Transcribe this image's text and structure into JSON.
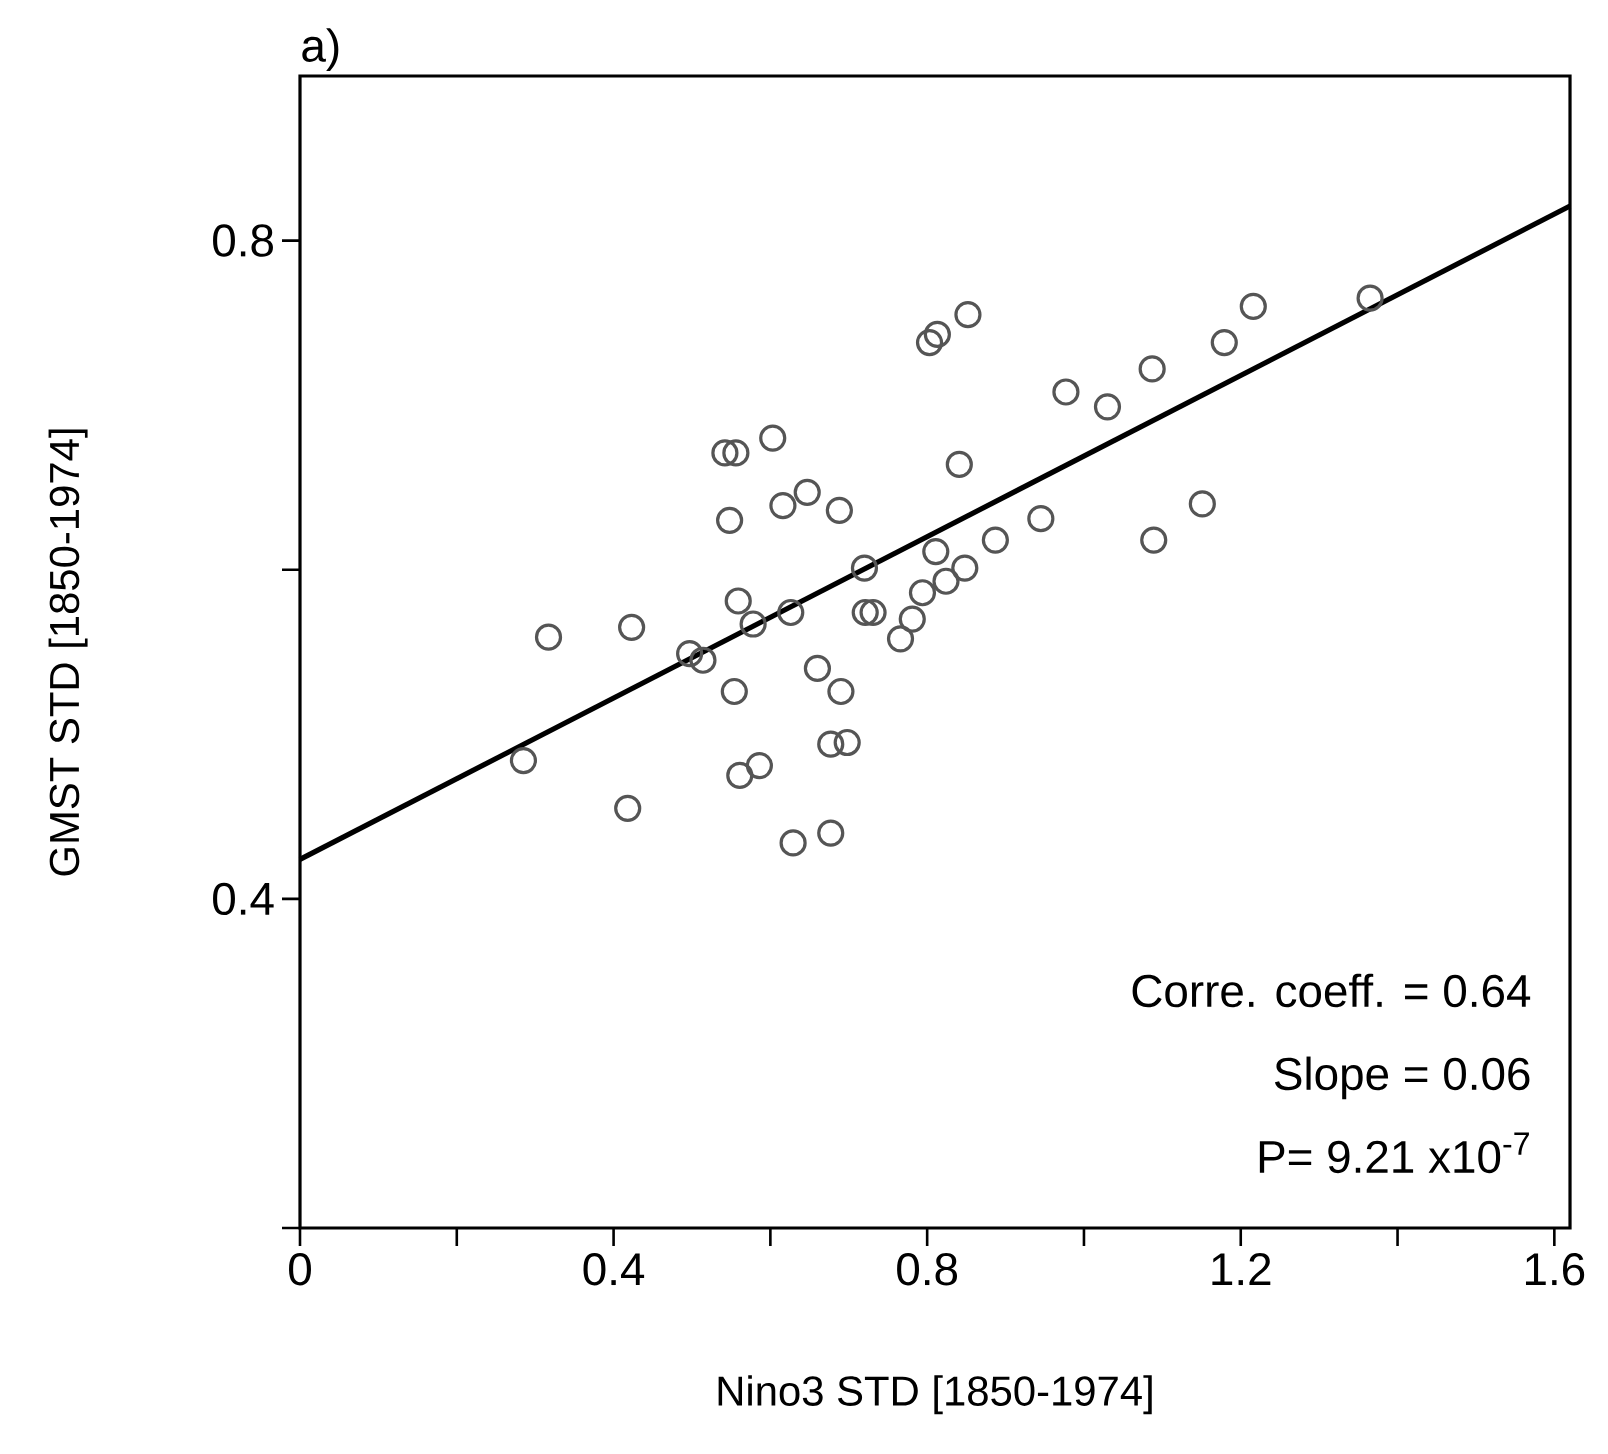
{
  "chart_data": {
    "type": "scatter",
    "xlabel": "Nino3 STD [1850-1974]",
    "ylabel": "GMST STD [1850-1974]",
    "annotations": [
      "a)",
      "Corre. coeff. =  0.64",
      "Slope =  0.06",
      "P= 9.21 x10$^{-7}$"
    ],
    "xlim": [
      0,
      1.62
    ],
    "ylim": [
      0.2,
      0.9
    ],
    "xticks": [
      0,
      {
        "value": 0.2,
        "label": null
      },
      0.4,
      {
        "value": 0.6,
        "label": null
      },
      0.8,
      {
        "value": 1.0,
        "label": null
      },
      1.2,
      {
        "value": 1.4,
        "label": null
      },
      1.6
    ],
    "yticks": [
      {
        "value": 0.2,
        "label": null
      },
      0.4,
      {
        "value": 0.6,
        "label": null
      },
      0.8
    ],
    "grid": false,
    "series": [
      {
        "color": "#555555",
        "marker": "circle",
        "x": [
          0.285,
          0.317,
          0.418,
          0.423,
          0.497,
          0.514,
          0.542,
          0.556,
          0.548,
          0.554,
          0.559,
          0.561,
          0.578,
          0.586,
          0.603,
          0.616,
          0.626,
          0.629,
          0.647,
          0.66,
          0.677,
          0.677,
          0.688,
          0.69,
          0.698,
          0.72,
          0.721,
          0.731,
          0.766,
          0.781,
          0.794,
          0.803,
          0.811,
          0.813,
          0.824,
          0.841,
          0.848,
          0.852,
          0.887,
          0.945,
          0.977,
          1.03,
          1.087,
          1.089,
          1.151,
          1.179,
          1.216,
          1.365
        ],
        "values": [
          0.484,
          0.559,
          0.455,
          0.565,
          0.549,
          0.545,
          0.671,
          0.671,
          0.63,
          0.526,
          0.581,
          0.475,
          0.567,
          0.481,
          0.68,
          0.639,
          0.574,
          0.434,
          0.647,
          0.54,
          0.494,
          0.44,
          0.636,
          0.526,
          0.495,
          0.601,
          0.574,
          0.574,
          0.558,
          0.57,
          0.586,
          0.738,
          0.611,
          0.743,
          0.593,
          0.664,
          0.601,
          0.755,
          0.618,
          0.631,
          0.708,
          0.699,
          0.722,
          0.618,
          0.64,
          0.738,
          0.76,
          0.765
        ]
      },
      {
        "type": "line",
        "color": "#000000",
        "marker": "none",
        "line_style": "solid",
        "x": [
          0,
          1.62
        ],
        "values": [
          0.424,
          0.821
        ]
      }
    ]
  }
}
